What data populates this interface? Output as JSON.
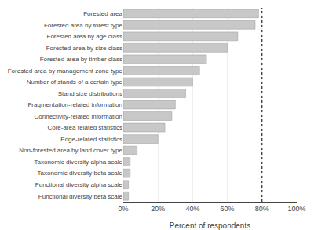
{
  "chart_data": {
    "type": "bar",
    "orientation": "horizontal",
    "xlabel": "Percent of respondents",
    "categories": [
      "Forested area",
      "Forested area by forest type",
      "Forested area by age class",
      "Forested area by size class",
      "Forested area by timber class",
      "Forested area by management zone type",
      "Number of stands of a certain type",
      "Stand size distributions",
      "Fragmentation-related information",
      "Connectivity-related information",
      "Core-area related statistics",
      "Edge-related statistics",
      "Non-forested area by land cover type",
      "Taxonomic diversity alpha scale",
      "Taxonomic diversity beta scale",
      "Functional diversity alpha scale",
      "Functional diversity beta scale"
    ],
    "values": [
      78,
      76,
      66,
      60,
      48,
      44,
      40,
      36,
      30,
      28,
      24,
      20,
      8,
      4,
      4,
      3,
      3
    ],
    "color": "#c8c8c8",
    "xlim": [
      0,
      100
    ],
    "xticks": [
      {
        "value": 0,
        "label": "0%"
      },
      {
        "value": 20,
        "label": "20%"
      },
      {
        "value": 40,
        "label": "40%"
      },
      {
        "value": 60,
        "label": "60%"
      },
      {
        "value": 80,
        "label": "80%"
      },
      {
        "value": 100,
        "label": "100%"
      }
    ],
    "grid": true,
    "reference_line_x": 80
  }
}
